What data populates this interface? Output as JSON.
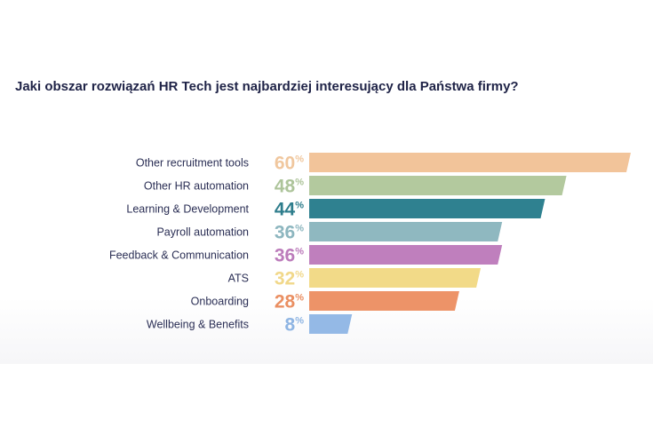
{
  "chart_data": {
    "type": "bar",
    "orientation": "horizontal",
    "title": "Jaki obszar rozwiązań HR Tech jest najbardziej interesujący dla Państwa firmy?",
    "categories": [
      "Other recruitment tools",
      "Other HR automation",
      "Learning & Development",
      "Payroll automation",
      "Feedback & Communication",
      "ATS",
      "Onboarding",
      "Wellbeing & Benefits"
    ],
    "values": [
      60,
      48,
      44,
      36,
      36,
      32,
      28,
      8
    ],
    "value_labels": [
      "60",
      "48",
      "44",
      "36",
      "36",
      "32",
      "28",
      "8"
    ],
    "unit": "%",
    "colors": [
      "#f2c49a",
      "#b3c99e",
      "#2f8190",
      "#8fb8c0",
      "#bf7fbd",
      "#f2da88",
      "#ed9368",
      "#94b9e6"
    ],
    "label_colors": [
      "#f0c79e",
      "#adc49a",
      "#2e7d8c",
      "#8db6bf",
      "#bc7cbb",
      "#f1d88a",
      "#ea8f62",
      "#8fb5e3"
    ],
    "xlim": [
      0,
      60
    ],
    "xlabel": "",
    "ylabel": "",
    "grid": false,
    "legend": "none"
  }
}
